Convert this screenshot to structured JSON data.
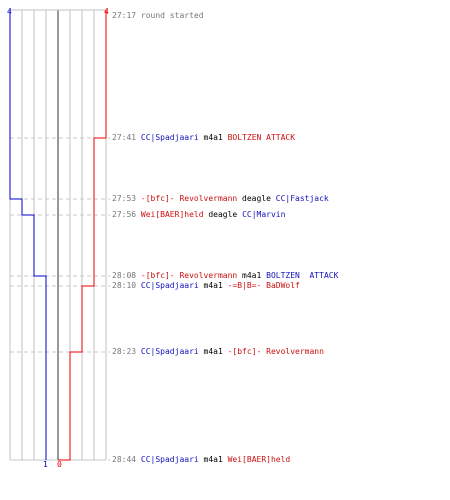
{
  "colors": {
    "red_team": "#ee0000",
    "blue_team": "#0000cc",
    "grid": "#c0c0c0",
    "dash": "#c8c8c8",
    "center": "#777777",
    "background": "#ffffff"
  },
  "score": {
    "red_start": "4",
    "blue_start": "4",
    "red_end": "0",
    "blue_end": "1"
  },
  "events": [
    {
      "time": "27:17",
      "parts": [
        {
          "t": "round started",
          "c": "gry"
        }
      ]
    },
    {
      "time": "27:41",
      "parts": [
        {
          "t": "CC|Spadjaari",
          "c": "blue"
        },
        {
          "t": " m4a1 ",
          "c": "blk"
        },
        {
          "t": "BOLTZEN ATTACK",
          "c": "red"
        }
      ]
    },
    {
      "time": "27:53",
      "parts": [
        {
          "t": "-[bfc]- Revolvermann",
          "c": "red"
        },
        {
          "t": " deagle ",
          "c": "blk"
        },
        {
          "t": "CC|Fastjack",
          "c": "blue"
        }
      ]
    },
    {
      "time": "27:56",
      "parts": [
        {
          "t": "Wei[BAER]held",
          "c": "red"
        },
        {
          "t": " deagle ",
          "c": "blk"
        },
        {
          "t": "CC|Marvin",
          "c": "blue"
        }
      ]
    },
    {
      "time": "28:08",
      "parts": [
        {
          "t": "-[bfc]- Revolvermann",
          "c": "red"
        },
        {
          "t": " m4a1 ",
          "c": "blk"
        },
        {
          "t": "BOLTZEN  ATTACK",
          "c": "blue"
        }
      ]
    },
    {
      "time": "28:10",
      "parts": [
        {
          "t": "CC|Spadjaari",
          "c": "blue"
        },
        {
          "t": " m4a1 ",
          "c": "blk"
        },
        {
          "t": "-=B|B=- BaDWolf",
          "c": "red"
        }
      ]
    },
    {
      "time": "28:23",
      "parts": [
        {
          "t": "CC|Spadjaari",
          "c": "blue"
        },
        {
          "t": " m4a1 ",
          "c": "blk"
        },
        {
          "t": "-[bfc]- Revolvermann",
          "c": "red"
        }
      ]
    },
    {
      "time": "28:44",
      "parts": [
        {
          "t": "CC|Spadjaari",
          "c": "blue"
        },
        {
          "t": " m4a1 ",
          "c": "blk"
        },
        {
          "t": "Wei[BAER]held",
          "c": "red"
        }
      ]
    }
  ]
}
